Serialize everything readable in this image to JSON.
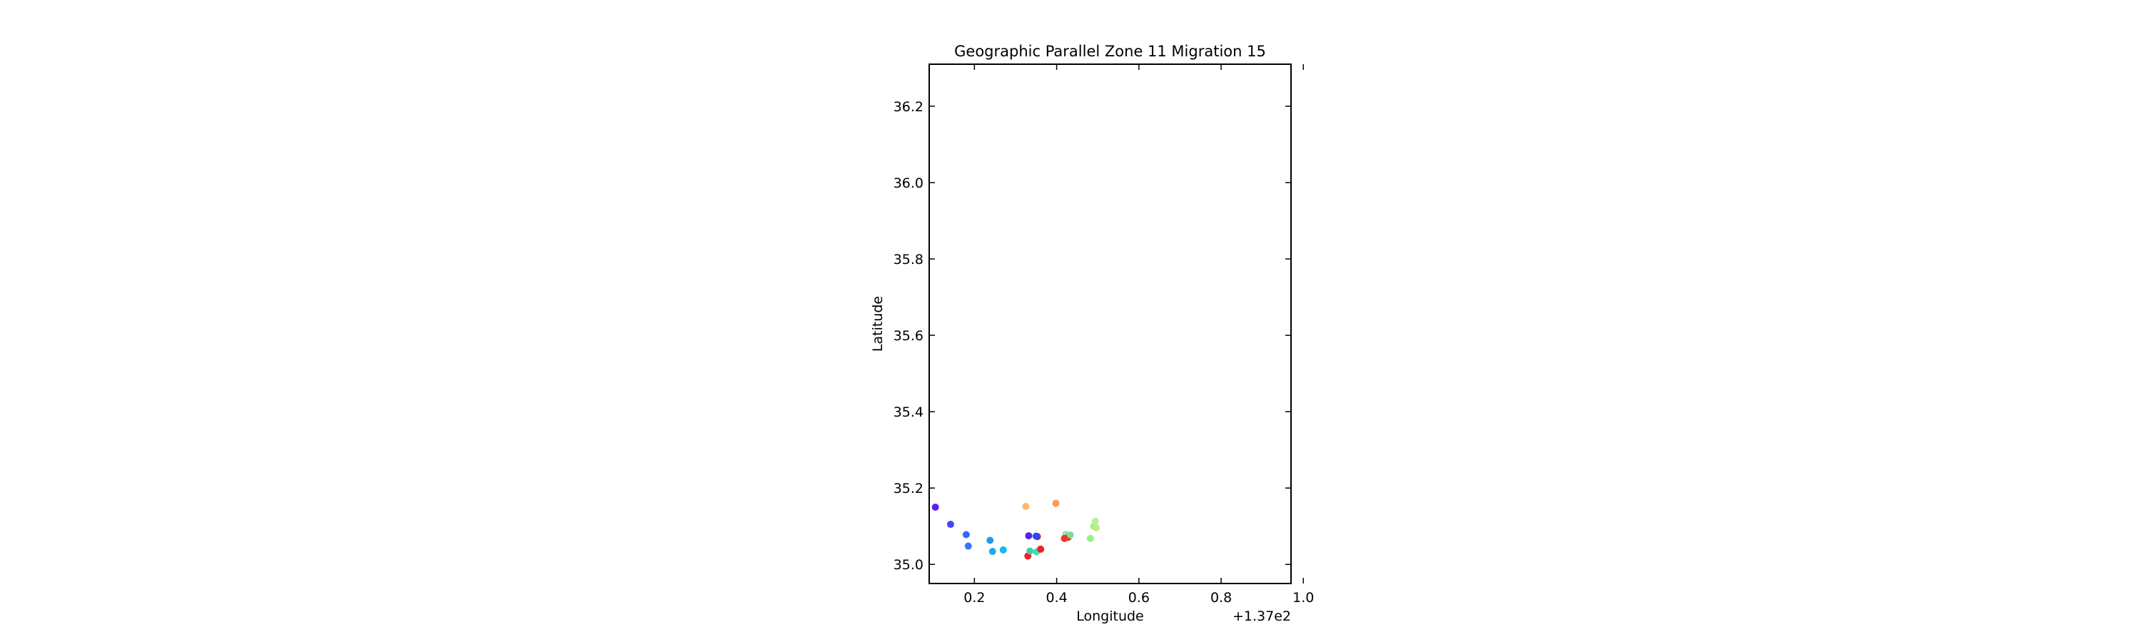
{
  "chart_data": {
    "type": "scatter",
    "title": "Geographic Parallel Zone 11 Migration 15",
    "xlabel": "Longitude",
    "ylabel": "Latitude",
    "x_offset_label": "+1.37e2",
    "xlim": [
      137.09,
      137.97
    ],
    "ylim": [
      34.95,
      36.31
    ],
    "xticks": [
      137.2,
      137.4,
      137.6,
      137.8,
      138.0
    ],
    "xtick_labels": [
      "0.2",
      "0.4",
      "0.6",
      "0.8",
      "1.0"
    ],
    "yticks": [
      35.0,
      35.2,
      35.4,
      35.6,
      35.8,
      36.0,
      36.2
    ],
    "ytick_labels": [
      "35.0",
      "35.2",
      "35.4",
      "35.6",
      "35.8",
      "36.0",
      "36.2"
    ],
    "grid": false,
    "points": [
      {
        "x": 137.105,
        "y": 35.15,
        "color": "#5522ee"
      },
      {
        "x": 137.142,
        "y": 35.105,
        "color": "#4444ff"
      },
      {
        "x": 137.18,
        "y": 35.078,
        "color": "#3366ff"
      },
      {
        "x": 137.185,
        "y": 35.048,
        "color": "#3377ff"
      },
      {
        "x": 137.238,
        "y": 35.063,
        "color": "#2299ee"
      },
      {
        "x": 137.244,
        "y": 35.034,
        "color": "#22aaee"
      },
      {
        "x": 137.27,
        "y": 35.038,
        "color": "#11bbee"
      },
      {
        "x": 137.325,
        "y": 35.152,
        "color": "#ffbb66"
      },
      {
        "x": 137.332,
        "y": 35.075,
        "color": "#5522ee"
      },
      {
        "x": 137.33,
        "y": 35.022,
        "color": "#ee2222"
      },
      {
        "x": 137.335,
        "y": 35.035,
        "color": "#44ccaa"
      },
      {
        "x": 137.351,
        "y": 35.033,
        "color": "#44ddbb"
      },
      {
        "x": 137.353,
        "y": 35.073,
        "color": "#dd1111"
      },
      {
        "x": 137.35,
        "y": 35.074,
        "color": "#3344ff"
      },
      {
        "x": 137.361,
        "y": 35.04,
        "color": "#ee2222"
      },
      {
        "x": 137.398,
        "y": 35.16,
        "color": "#ff9955"
      },
      {
        "x": 137.422,
        "y": 35.079,
        "color": "#88eeaa"
      },
      {
        "x": 137.428,
        "y": 35.071,
        "color": "#ee3322"
      },
      {
        "x": 137.433,
        "y": 35.077,
        "color": "#77dd99"
      },
      {
        "x": 137.419,
        "y": 35.068,
        "color": "#ee3333"
      },
      {
        "x": 137.482,
        "y": 35.068,
        "color": "#99ee88"
      },
      {
        "x": 137.49,
        "y": 35.1,
        "color": "#aaee88"
      },
      {
        "x": 137.494,
        "y": 35.113,
        "color": "#bbee99"
      },
      {
        "x": 137.496,
        "y": 35.096,
        "color": "#bbee88"
      }
    ]
  }
}
